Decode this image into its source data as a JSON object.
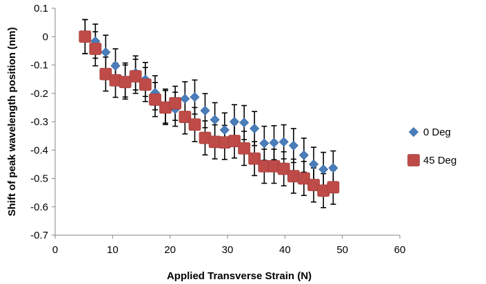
{
  "chart_data": {
    "type": "scatter",
    "title": "",
    "xlabel": "Applied Transverse Strain (N)",
    "ylabel": "Shift of peak wavelength position (nm)",
    "xlim": [
      0,
      60
    ],
    "ylim": [
      -0.7,
      0.1
    ],
    "xticks": [
      0,
      10,
      20,
      30,
      40,
      50,
      60
    ],
    "yticks": [
      0.1,
      0,
      -0.1,
      -0.2,
      -0.3,
      -0.4,
      -0.5,
      -0.6,
      -0.7
    ],
    "xtick_labels": [
      "0",
      "10",
      "20",
      "30",
      "40",
      "50",
      "60"
    ],
    "ytick_labels": [
      "0.1",
      "0",
      "-0.1",
      "-0.2",
      "-0.3",
      "-0.4",
      "-0.5",
      "-0.6",
      "-0.7"
    ],
    "grid": false,
    "legend_position": "right",
    "error_bar": 0.06,
    "series": [
      {
        "name": "0 Deg",
        "marker": "diamond",
        "color": "#4a7ebb",
        "x": [
          5.2,
          7.0,
          8.8,
          10.5,
          12.2,
          14.0,
          15.7,
          17.4,
          19.2,
          20.9,
          22.6,
          24.3,
          26.1,
          27.8,
          29.5,
          31.2,
          32.9,
          34.7,
          36.4,
          38.1,
          39.8,
          41.5,
          43.3,
          45.0,
          46.7,
          48.4
        ],
        "y": [
          0.0,
          -0.016,
          -0.055,
          -0.103,
          -0.153,
          -0.128,
          -0.151,
          -0.198,
          -0.245,
          -0.256,
          -0.219,
          -0.213,
          -0.261,
          -0.293,
          -0.329,
          -0.3,
          -0.303,
          -0.324,
          -0.376,
          -0.374,
          -0.371,
          -0.384,
          -0.418,
          -0.45,
          -0.468,
          -0.463
        ]
      },
      {
        "name": "45 Deg",
        "marker": "square",
        "color": "#be4b48",
        "x": [
          5.2,
          7.0,
          8.8,
          10.5,
          12.2,
          14.0,
          15.7,
          17.4,
          19.2,
          20.9,
          22.6,
          24.3,
          26.1,
          27.8,
          29.5,
          31.2,
          32.9,
          34.7,
          36.4,
          38.1,
          39.8,
          41.5,
          43.3,
          45.0,
          46.7,
          48.4
        ],
        "y": [
          0.0,
          -0.043,
          -0.132,
          -0.154,
          -0.16,
          -0.14,
          -0.169,
          -0.222,
          -0.25,
          -0.235,
          -0.283,
          -0.31,
          -0.357,
          -0.371,
          -0.373,
          -0.368,
          -0.394,
          -0.43,
          -0.457,
          -0.457,
          -0.466,
          -0.492,
          -0.5,
          -0.523,
          -0.543,
          -0.531
        ]
      }
    ]
  }
}
